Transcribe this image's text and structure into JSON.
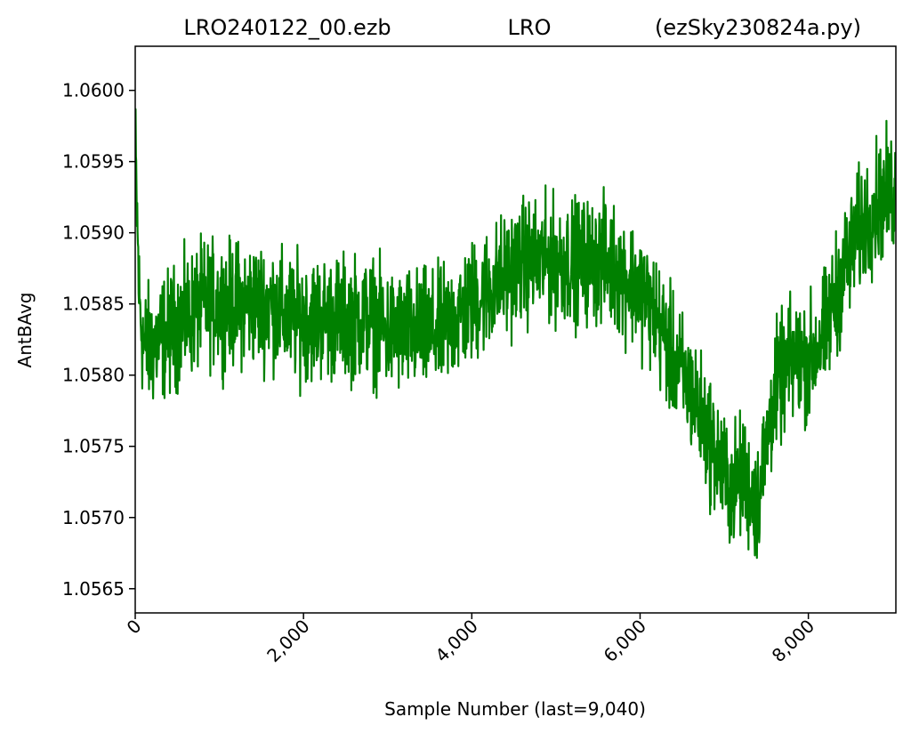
{
  "header": {
    "title_left": "LRO240122_00.ezb",
    "title_center": "LRO",
    "title_right": "(ezSky230824a.py)"
  },
  "chart_data": {
    "type": "line",
    "xlabel": "Sample Number (last=9,040)",
    "ylabel": "AntBAvg",
    "xlim": [
      0,
      9040
    ],
    "ylim": [
      1.05633,
      1.06031
    ],
    "x_ticks": [
      0,
      2000,
      4000,
      6000,
      8000
    ],
    "x_tick_labels": [
      "0",
      "2,000",
      "4,000",
      "6,000",
      "8,000"
    ],
    "y_ticks": [
      1.0565,
      1.057,
      1.0575,
      1.058,
      1.0585,
      1.059,
      1.0595,
      1.06
    ],
    "y_tick_labels": [
      "1.0565",
      "1.0570",
      "1.0575",
      "1.0580",
      "1.0585",
      "1.0590",
      "1.0595",
      "1.0600"
    ],
    "grid": false,
    "line_color": "#008000",
    "series": [
      {
        "x": [
          0,
          50,
          100,
          200,
          400,
          600,
          800,
          1000,
          1200,
          1400,
          1600,
          1800,
          2000,
          2200,
          2400,
          2600,
          2800,
          3000,
          3200,
          3400,
          3600,
          3800,
          4000,
          4200,
          4400,
          4600,
          4800,
          5000,
          5200,
          5400,
          5600,
          5800,
          6000,
          6200,
          6400,
          6600,
          6800,
          7000,
          7100,
          7200,
          7300,
          7400,
          7500,
          7600,
          7800,
          8000,
          8200,
          8400,
          8600,
          8800,
          9040
        ],
        "y": [
          1.0596,
          1.0585,
          1.0582,
          1.0582,
          1.0583,
          1.0584,
          1.0585,
          1.0585,
          1.0585,
          1.0585,
          1.0585,
          1.0584,
          1.0584,
          1.0584,
          1.0584,
          1.0584,
          1.0584,
          1.0583,
          1.0583,
          1.0583,
          1.0583,
          1.0584,
          1.0585,
          1.0586,
          1.0587,
          1.0588,
          1.0588,
          1.0588,
          1.0588,
          1.0588,
          1.0588,
          1.0587,
          1.0586,
          1.0584,
          1.0581,
          1.0579,
          1.0576,
          1.0573,
          1.0572,
          1.0573,
          1.0572,
          1.0571,
          1.0575,
          1.0579,
          1.0581,
          1.0581,
          1.0583,
          1.0587,
          1.059,
          1.0592,
          1.0593
        ],
        "noise_amplitude": 0.00035
      }
    ]
  }
}
